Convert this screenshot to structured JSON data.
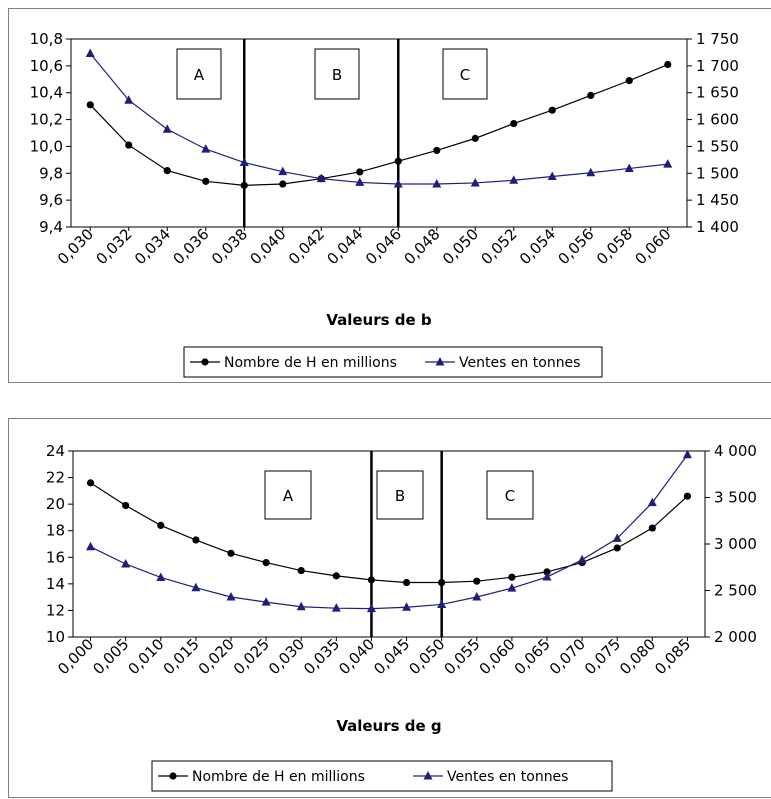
{
  "chart_data": [
    {
      "type": "line",
      "xlabel": "Valeurs de b",
      "categories": [
        "0,030",
        "0,032",
        "0,034",
        "0,036",
        "0,038",
        "0,040",
        "0,042",
        "0,044",
        "0,046",
        "0,048",
        "0,050",
        "0,052",
        "0,054",
        "0,056",
        "0,058",
        "0,060"
      ],
      "x": [
        0.031,
        0.033,
        0.035,
        0.037,
        0.039,
        0.041,
        0.043,
        0.045,
        0.047,
        0.049,
        0.051,
        0.053,
        0.055,
        0.057,
        0.059,
        0.061
      ],
      "x_range": [
        0.03,
        0.062
      ],
      "y_left": {
        "min": 9.4,
        "max": 10.8,
        "ticks": [
          "9,4",
          "9,6",
          "9,8",
          "10,0",
          "10,2",
          "10,4",
          "10,6",
          "10,8"
        ]
      },
      "y_right": {
        "min": 1400,
        "max": 1750,
        "ticks": [
          "1 400",
          "1 450",
          "1 500",
          "1 550",
          "1 600",
          "1 650",
          "1 700",
          "1 750"
        ]
      },
      "series": [
        {
          "name": "Nombre de H en millions",
          "axis": "left",
          "marker": "circle",
          "color": "#000000",
          "values": [
            10.31,
            10.01,
            9.82,
            9.74,
            9.71,
            9.72,
            9.76,
            9.81,
            9.89,
            9.97,
            10.06,
            10.17,
            10.27,
            10.38,
            10.49,
            10.61
          ]
        },
        {
          "name": "Ventes en tonnes",
          "axis": "right",
          "marker": "triangle",
          "color": "#1f1f7a",
          "values": [
            1723,
            1636,
            1582,
            1545,
            1520,
            1503,
            1490,
            1483,
            1480,
            1480,
            1482,
            1487,
            1494,
            1501,
            1509,
            1517
          ]
        }
      ],
      "regions": [
        {
          "label": "A",
          "x_from": 0.03,
          "x_to": 0.039
        },
        {
          "label": "B",
          "x_from": 0.039,
          "x_to": 0.047
        },
        {
          "label": "C",
          "x_from": 0.047,
          "x_to": 0.062
        }
      ],
      "dividers": [
        0.039,
        0.047
      ],
      "legend_position": "bottom"
    },
    {
      "type": "line",
      "xlabel": "Valeurs de g",
      "categories": [
        "0,000",
        "0,005",
        "0,010",
        "0,015",
        "0,020",
        "0,025",
        "0,030",
        "0,035",
        "0,040",
        "0,045",
        "0,050",
        "0,055",
        "0,060",
        "0,065",
        "0,070",
        "0,075",
        "0,080",
        "0,085"
      ],
      "x": [
        0.0025,
        0.0075,
        0.0125,
        0.0175,
        0.0225,
        0.0275,
        0.0325,
        0.0375,
        0.0425,
        0.0475,
        0.0525,
        0.0575,
        0.0625,
        0.0675,
        0.0725,
        0.0775,
        0.0825,
        0.0875
      ],
      "x_range": [
        0.0,
        0.09
      ],
      "y_left": {
        "min": 10,
        "max": 24,
        "ticks": [
          "10",
          "12",
          "14",
          "16",
          "18",
          "20",
          "22",
          "24"
        ]
      },
      "y_right": {
        "min": 2000,
        "max": 4000,
        "ticks": [
          "2 000",
          "2 500",
          "3 000",
          "3 500",
          "4 000"
        ]
      },
      "series": [
        {
          "name": "Nombre de H en millions",
          "axis": "left",
          "marker": "circle",
          "color": "#000000",
          "values": [
            21.6,
            19.9,
            18.4,
            17.3,
            16.3,
            15.6,
            15.0,
            14.6,
            14.3,
            14.1,
            14.1,
            14.2,
            14.5,
            14.9,
            15.6,
            16.7,
            18.2,
            20.6
          ]
        },
        {
          "name": "Ventes en tonnes",
          "axis": "right",
          "marker": "triangle",
          "color": "#1f1f7a",
          "values": [
            2970,
            2785,
            2640,
            2530,
            2430,
            2375,
            2325,
            2310,
            2305,
            2320,
            2350,
            2430,
            2525,
            2645,
            2830,
            3060,
            3445,
            3960
          ]
        }
      ],
      "regions": [
        {
          "label": "A",
          "x_from": 0.0,
          "x_to": 0.0425
        },
        {
          "label": "B",
          "x_from": 0.0425,
          "x_to": 0.0525
        },
        {
          "label": "C",
          "x_from": 0.0525,
          "x_to": 0.09
        }
      ],
      "dividers": [
        0.0425,
        0.0525
      ],
      "legend_position": "bottom"
    }
  ]
}
